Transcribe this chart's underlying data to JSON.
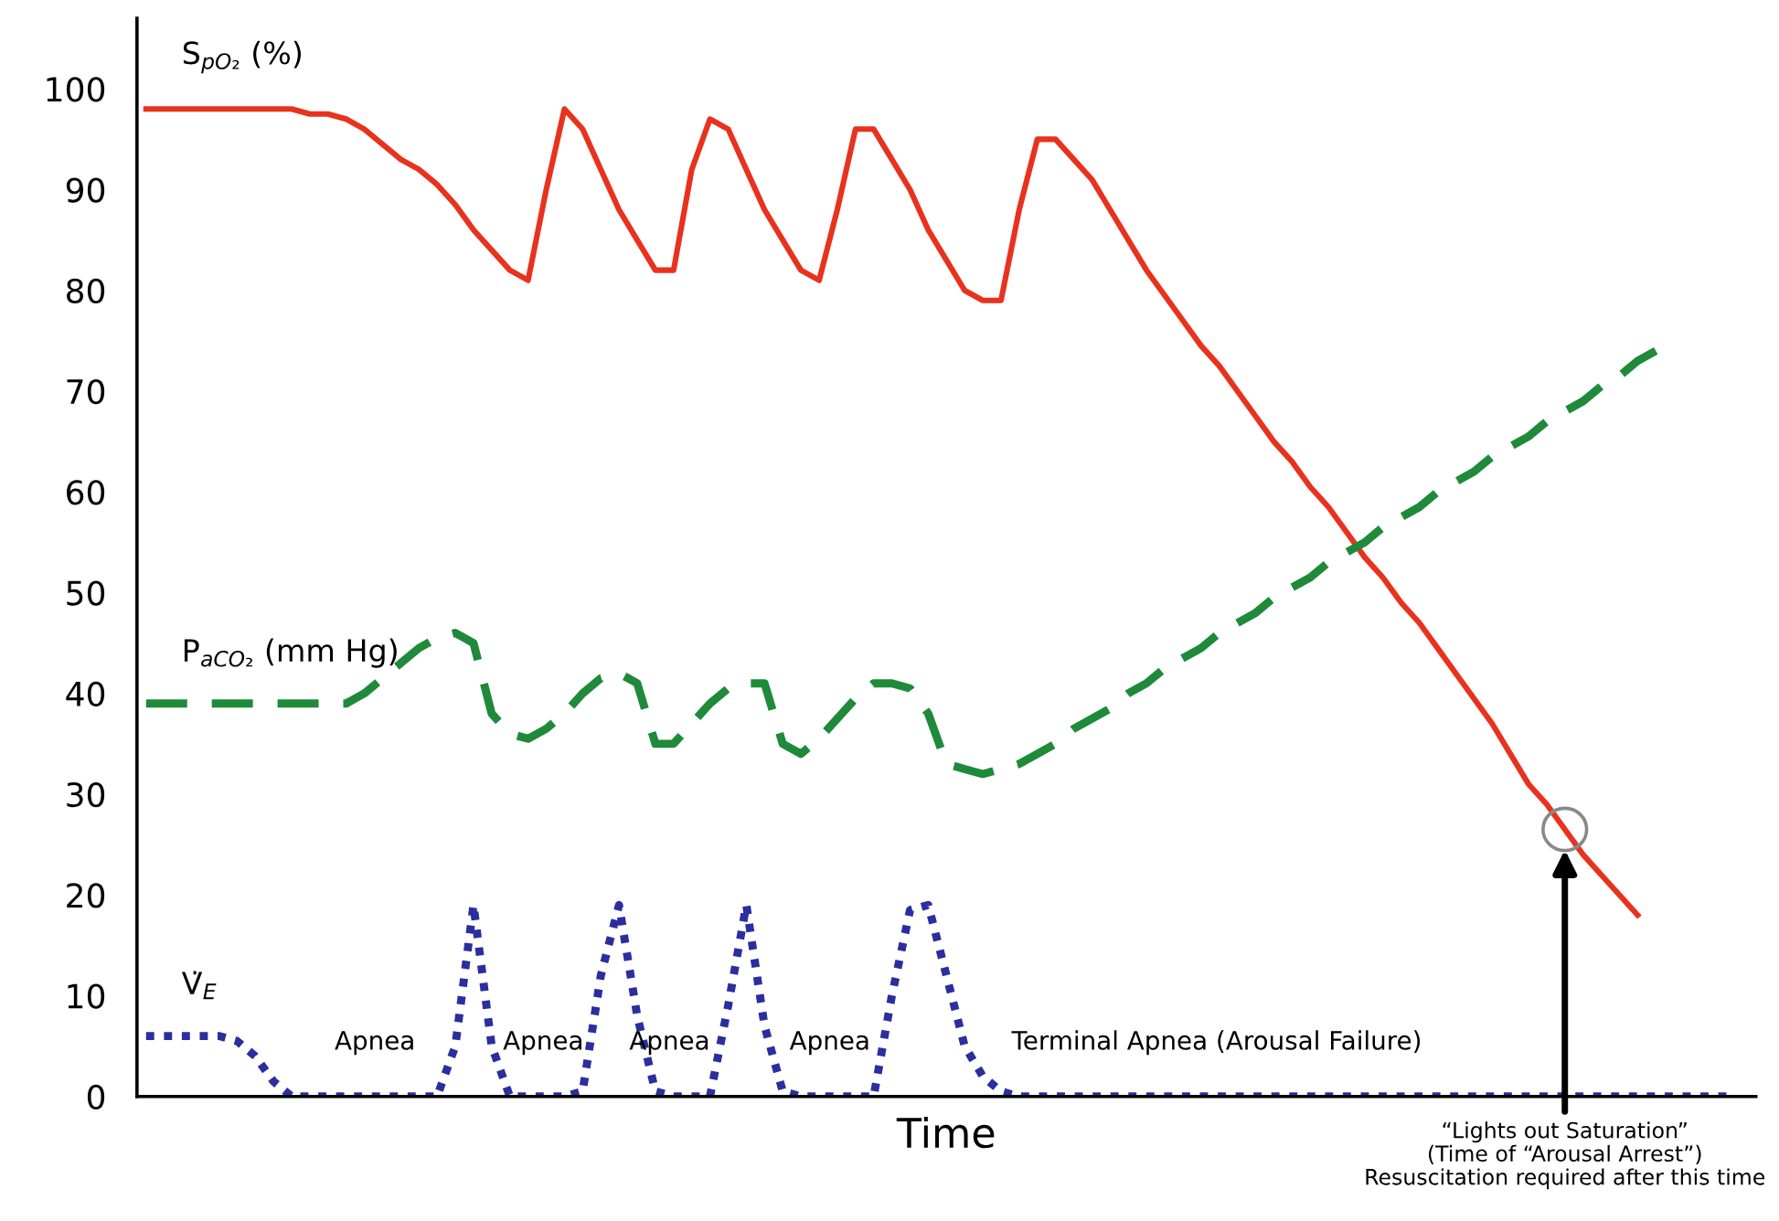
{
  "chart_data": {
    "type": "line",
    "xlabel": "Time",
    "categories": [
      null,
      null,
      null,
      null,
      null,
      null,
      null,
      null,
      null,
      null,
      null,
      null,
      null,
      null,
      null,
      null,
      null,
      null,
      null,
      null,
      null,
      null,
      null,
      null,
      null,
      null,
      null,
      null,
      null,
      null,
      null,
      null,
      null,
      null,
      null,
      null,
      null,
      null,
      null,
      null,
      null,
      null,
      null,
      null,
      null,
      null,
      null,
      null,
      null,
      null,
      null,
      null,
      null,
      null,
      null,
      null,
      null,
      null,
      null,
      null,
      null,
      null,
      null,
      null,
      null,
      null,
      null,
      null,
      null,
      null,
      null,
      null,
      null,
      null,
      null,
      null,
      null,
      null,
      null,
      null,
      null,
      null,
      null,
      null,
      null,
      null,
      null,
      null
    ],
    "series": [
      {
        "name": "S$_{pO₂}$ (%)",
        "color": "#e8321e",
        "line_style": "solid",
        "values": [
          98,
          98,
          98,
          98,
          98,
          98,
          98,
          98,
          98,
          97.5,
          97.5,
          97,
          96,
          94.5,
          93,
          92,
          90.5,
          88.5,
          86,
          84,
          82,
          81,
          90,
          98,
          96,
          92,
          88,
          85,
          82,
          82,
          92,
          97,
          96,
          92,
          88,
          85,
          82,
          81,
          88,
          96,
          96,
          93,
          90,
          86,
          83,
          80,
          79,
          79,
          88,
          95,
          95,
          93,
          91,
          88,
          85,
          82,
          79.5,
          77,
          74.5,
          72.5,
          70,
          67.5,
          65,
          63,
          60.5,
          58.5,
          56,
          53.5,
          51.5,
          49,
          47,
          44.5,
          42,
          39.5,
          37,
          34,
          31,
          29,
          26.5,
          24,
          22,
          20,
          18,
          null,
          null,
          null,
          null,
          null
        ]
      },
      {
        "name": "P$_{aCO₂}$ (mm Hg)",
        "color": "#1e8a3a",
        "line_style": "dashed",
        "values": [
          39,
          39,
          39,
          39,
          39,
          39,
          39,
          39,
          39,
          39,
          39,
          39,
          40,
          41.5,
          43,
          44.5,
          45.5,
          46,
          45,
          38,
          36,
          35.5,
          36.5,
          38,
          40,
          41.5,
          42,
          41,
          35,
          35,
          37,
          39,
          40.5,
          41,
          41,
          35,
          34,
          35.5,
          37.5,
          39.5,
          41,
          41,
          40.5,
          38,
          33,
          32.5,
          32,
          32.5,
          33,
          34,
          35,
          36.5,
          37.5,
          38.5,
          40,
          41,
          42.5,
          43.5,
          44.5,
          46,
          47,
          48,
          49.5,
          50.5,
          51.5,
          53,
          54,
          55,
          56.5,
          57.5,
          58.5,
          60,
          61,
          62,
          63.5,
          64.5,
          65.5,
          67,
          68,
          69,
          70.5,
          71.5,
          73,
          74,
          null,
          null,
          null,
          null
        ]
      },
      {
        "name": "V̇$_{E}$",
        "color": "#2b2e9e",
        "line_style": "dotted",
        "values": [
          6,
          6,
          6,
          6,
          6,
          5.5,
          4,
          1.5,
          0,
          0,
          0,
          0,
          0,
          0,
          0,
          0,
          0,
          5,
          19,
          5,
          0,
          0,
          0,
          0,
          0.5,
          12,
          19,
          8,
          0.5,
          0,
          0,
          0,
          9,
          19,
          7,
          0.5,
          0,
          0,
          0,
          0,
          0,
          10,
          18.5,
          19,
          12,
          5,
          2,
          0.5,
          0,
          0,
          0,
          0,
          0,
          0,
          0,
          0,
          0,
          0,
          0,
          0,
          0,
          0,
          0,
          0,
          0,
          0,
          0,
          0,
          0,
          0,
          0,
          0,
          0,
          0,
          0,
          0,
          0,
          0,
          0,
          0,
          0,
          0,
          0,
          0,
          0,
          0,
          0,
          0
        ]
      }
    ],
    "ylim": [
      0,
      107
    ],
    "yticks": [
      0,
      10,
      20,
      30,
      40,
      50,
      60,
      70,
      80,
      90,
      100
    ],
    "grid": false,
    "legend": false,
    "annotations": [
      "Apnea",
      "Apnea",
      "Apnea",
      "Apnea",
      "Terminal Apnea (Arousal Failure)",
      "“Lights out Saturation”\n(Time of “Arousal Arrest”)\nResuscitation required after this time"
    ]
  }
}
